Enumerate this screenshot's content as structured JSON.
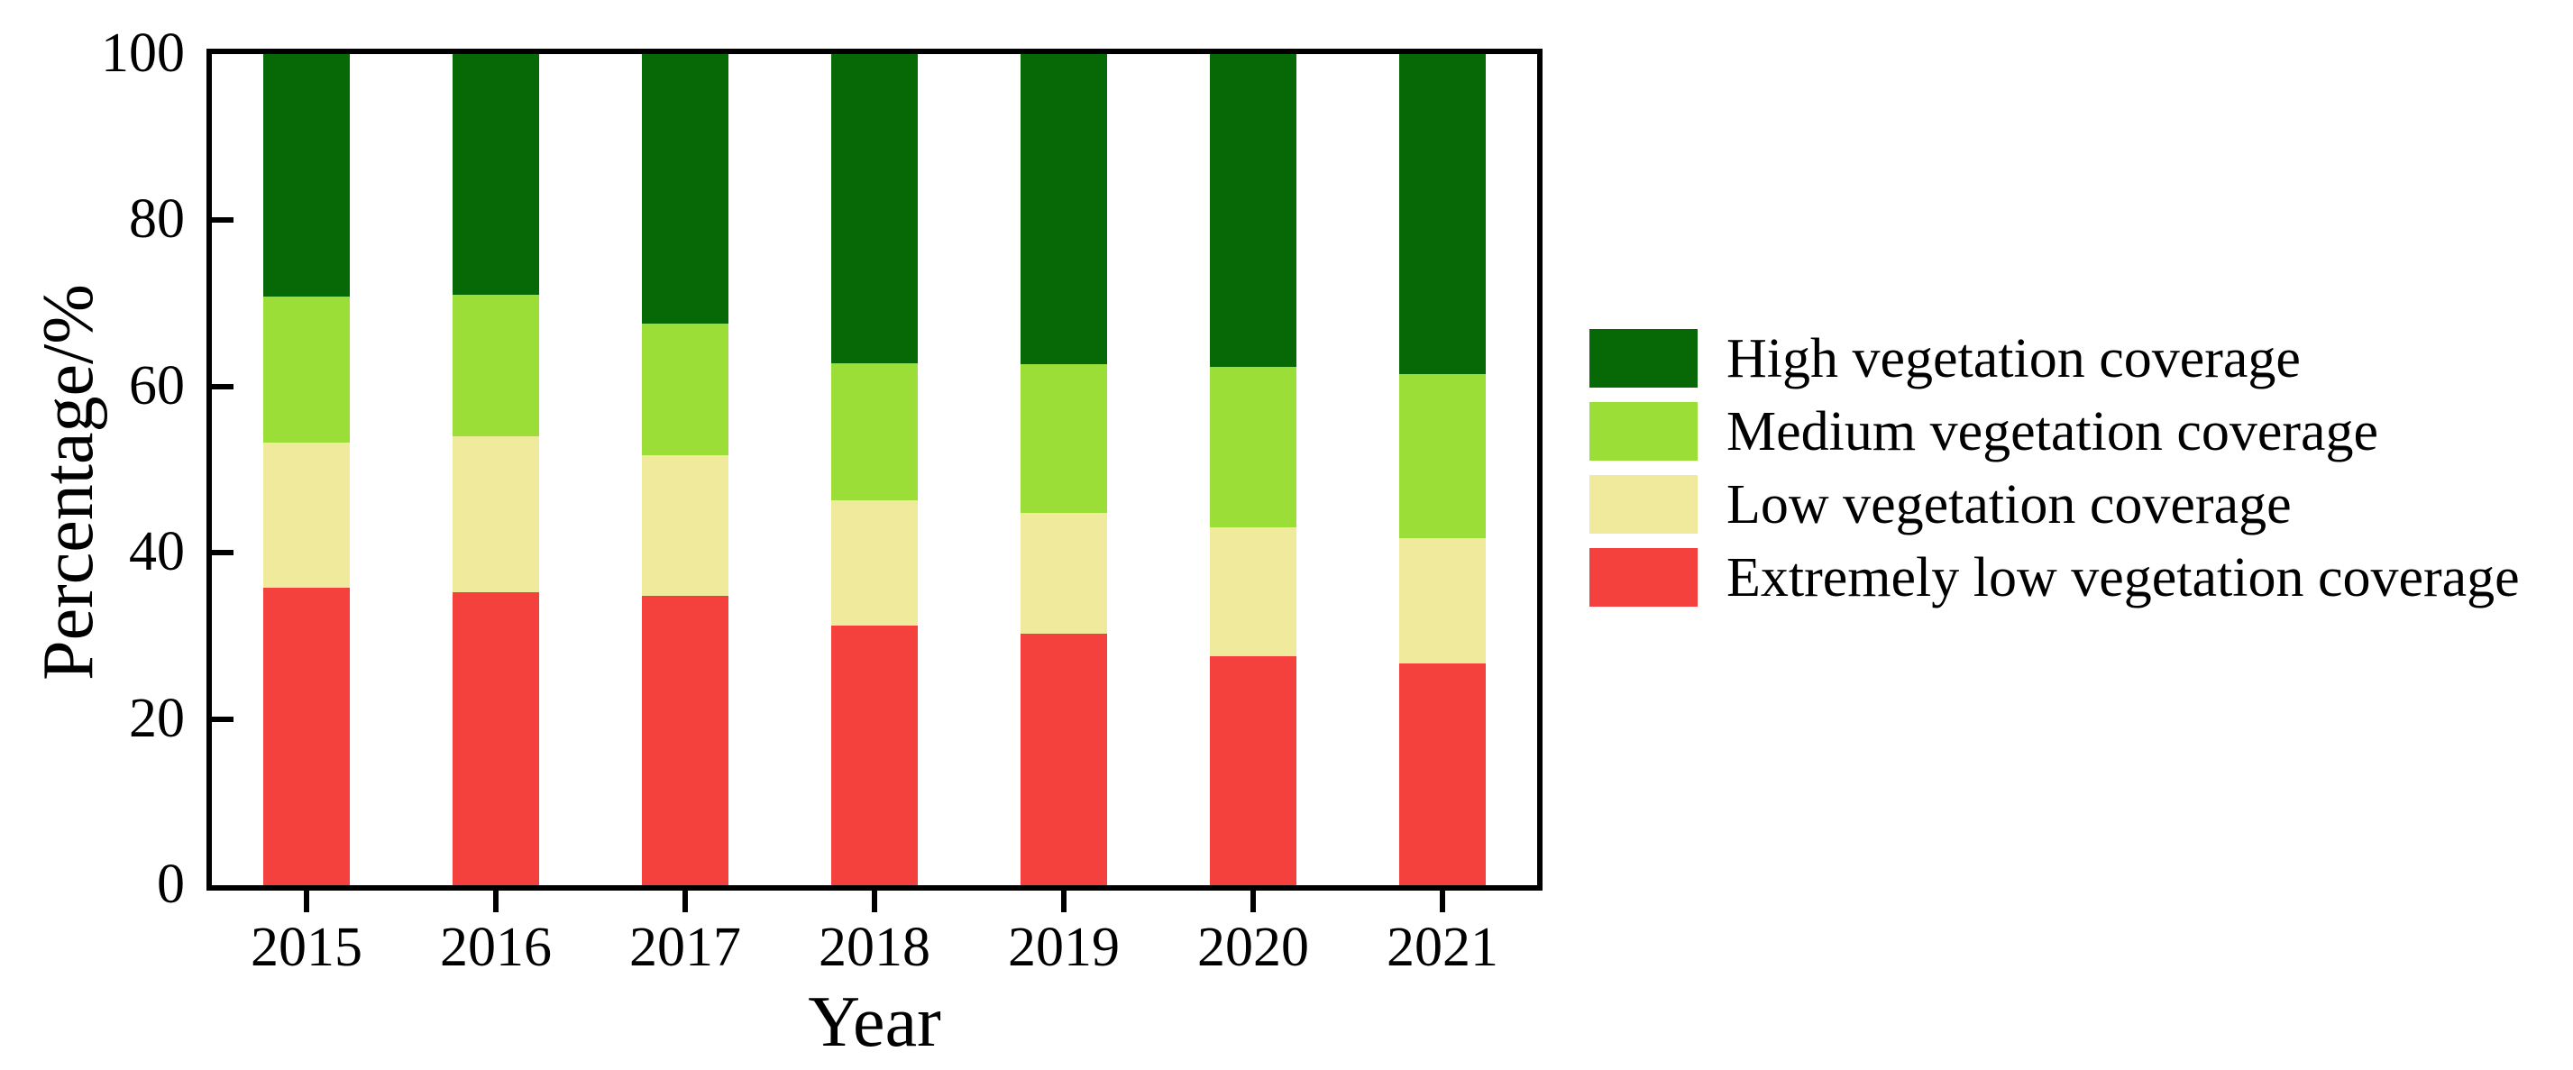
{
  "chart_data": {
    "type": "bar",
    "subtype": "stacked-percentage",
    "title": "",
    "xlabel": "Year",
    "ylabel": "Percentage/%",
    "categories": [
      "2015",
      "2016",
      "2017",
      "2018",
      "2019",
      "2020",
      "2021"
    ],
    "series": [
      {
        "name": "Extremely low vegetation coverage",
        "color": "#f5413d",
        "values": [
          35.8,
          35.3,
          34.8,
          31.2,
          30.3,
          27.6,
          26.7
        ]
      },
      {
        "name": "Low vegetation coverage",
        "color": "#f0eb9c",
        "values": [
          17.4,
          18.7,
          16.9,
          15.1,
          14.5,
          15.5,
          15.1
        ]
      },
      {
        "name": "Medium vegetation coverage",
        "color": "#9ade37",
        "values": [
          17.6,
          17.0,
          15.9,
          16.5,
          17.9,
          19.3,
          19.7
        ]
      },
      {
        "name": "High vegetation coverage",
        "color": "#066906",
        "values": [
          29.2,
          29.0,
          32.4,
          37.2,
          37.3,
          37.6,
          38.5
        ]
      }
    ],
    "y_ticks": [
      "0",
      "20",
      "40",
      "60",
      "80",
      "100"
    ],
    "ylim": [
      0,
      100
    ],
    "grid": false,
    "legend_position": "right-outside",
    "legend_order_top_to_bottom": [
      3,
      2,
      1,
      0
    ],
    "axis_color": "#000000",
    "background_color": "#ffffff"
  }
}
